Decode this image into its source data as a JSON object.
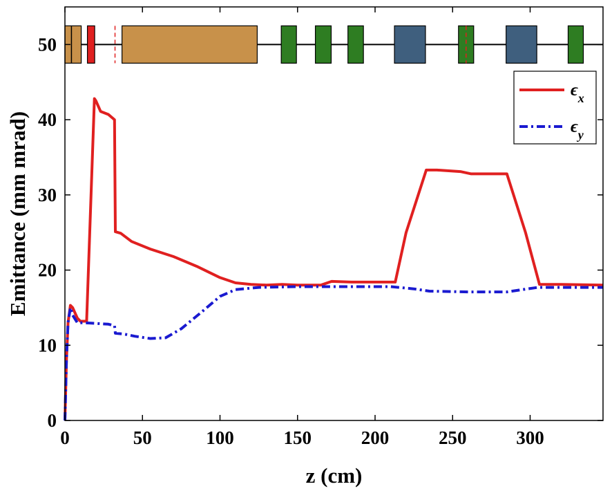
{
  "chart_data": {
    "type": "line",
    "xlabel": "z (cm)",
    "ylabel": "Emittance (mm mrad)",
    "xlim": [
      0,
      347
    ],
    "ylim": [
      0,
      55
    ],
    "xticks": [
      "0",
      "50",
      "100",
      "150",
      "200",
      "250",
      "300"
    ],
    "yticks": [
      "0",
      "10",
      "20",
      "30",
      "40",
      "50"
    ],
    "xtick_values": [
      0,
      50,
      100,
      150,
      200,
      250,
      300
    ],
    "ytick_values": [
      0,
      10,
      20,
      30,
      40,
      50
    ],
    "grid": false,
    "legend_position": "top-right",
    "series": [
      {
        "name": "ϵ",
        "subscript": "x",
        "color": "#e02020",
        "style": "solid",
        "points": [
          [
            0,
            0
          ],
          [
            1,
            8
          ],
          [
            2,
            13
          ],
          [
            3.5,
            15.3
          ],
          [
            5,
            15
          ],
          [
            8,
            13.6
          ],
          [
            10,
            13.2
          ],
          [
            14,
            13.2
          ],
          [
            19,
            42.8
          ],
          [
            20,
            42.5
          ],
          [
            23,
            41.1
          ],
          [
            28,
            40.7
          ],
          [
            32,
            40
          ],
          [
            32.5,
            25.1
          ],
          [
            36,
            24.9
          ],
          [
            43,
            23.8
          ],
          [
            55,
            22.8
          ],
          [
            70,
            21.8
          ],
          [
            85,
            20.5
          ],
          [
            100,
            19
          ],
          [
            110,
            18.3
          ],
          [
            120,
            18.1
          ],
          [
            130,
            18
          ],
          [
            140,
            18.1
          ],
          [
            150,
            18
          ],
          [
            165,
            18
          ],
          [
            172,
            18.5
          ],
          [
            185,
            18.4
          ],
          [
            200,
            18.4
          ],
          [
            213,
            18.4
          ],
          [
            220,
            25
          ],
          [
            233,
            33.3
          ],
          [
            240,
            33.3
          ],
          [
            255,
            33.1
          ],
          [
            262,
            32.8
          ],
          [
            285,
            32.8
          ],
          [
            297,
            25
          ],
          [
            306,
            18.1
          ],
          [
            320,
            18.1
          ],
          [
            347,
            18
          ]
        ]
      },
      {
        "name": "ϵ",
        "subscript": "y",
        "color": "#1a1ad0",
        "style": "dashdot",
        "points": [
          [
            0,
            0
          ],
          [
            1,
            8
          ],
          [
            2,
            13
          ],
          [
            3.5,
            15
          ],
          [
            5,
            14
          ],
          [
            8,
            13
          ],
          [
            12,
            13
          ],
          [
            20,
            12.9
          ],
          [
            28,
            12.8
          ],
          [
            32,
            12.6
          ],
          [
            32.5,
            11.6
          ],
          [
            38,
            11.5
          ],
          [
            45,
            11.2
          ],
          [
            55,
            10.9
          ],
          [
            65,
            11
          ],
          [
            75,
            12.2
          ],
          [
            88,
            14.4
          ],
          [
            100,
            16.5
          ],
          [
            110,
            17.4
          ],
          [
            125,
            17.7
          ],
          [
            150,
            17.8
          ],
          [
            180,
            17.8
          ],
          [
            210,
            17.8
          ],
          [
            225,
            17.5
          ],
          [
            235,
            17.2
          ],
          [
            260,
            17.1
          ],
          [
            285,
            17.1
          ],
          [
            295,
            17.4
          ],
          [
            305,
            17.7
          ],
          [
            347,
            17.7
          ]
        ]
      }
    ],
    "lattice": {
      "y": 50,
      "elements": [
        {
          "type": "brown",
          "color": "#c8914a",
          "z0": 0,
          "z1": 10.5
        },
        {
          "type": "red",
          "color": "#e02020",
          "z0": 14.5,
          "z1": 19.2
        },
        {
          "type": "brown",
          "color": "#c8914a",
          "z0": 36.8,
          "z1": 124
        },
        {
          "type": "green",
          "color": "#2e7d22",
          "z0": 139.5,
          "z1": 149.3
        },
        {
          "type": "green",
          "color": "#2e7d22",
          "z0": 161.5,
          "z1": 171.7
        },
        {
          "type": "green",
          "color": "#2e7d22",
          "z0": 182.5,
          "z1": 192.5
        },
        {
          "type": "blue",
          "color": "#3f5f7e",
          "z0": 212.5,
          "z1": 232.5
        },
        {
          "type": "green",
          "color": "#2e7d22",
          "z0": 253.8,
          "z1": 263.6
        },
        {
          "type": "blue",
          "color": "#3f5f7e",
          "z0": 284.5,
          "z1": 304.3
        },
        {
          "type": "green",
          "color": "#2e7d22",
          "z0": 324.5,
          "z1": 334.3
        }
      ],
      "markers": [
        {
          "z": 4.2,
          "color": "#000000",
          "style": "solid"
        },
        {
          "z": 32.3,
          "color": "#e02020",
          "style": "dashed"
        },
        {
          "z": 258.7,
          "color": "#e02020",
          "style": "dashed"
        }
      ]
    }
  }
}
